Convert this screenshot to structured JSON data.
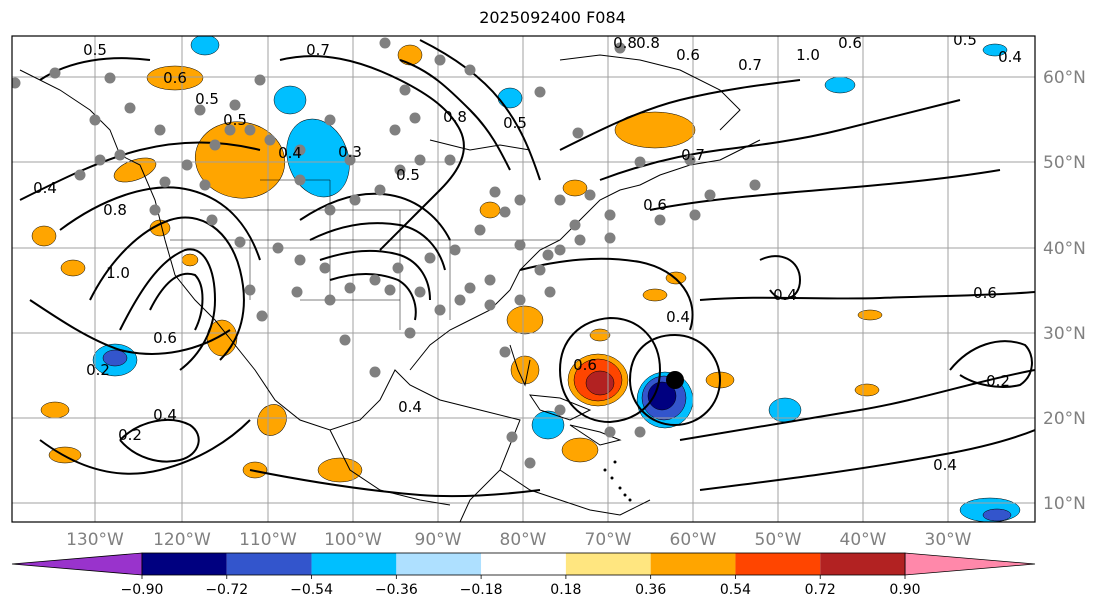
{
  "title": "2025092400 F084",
  "map": {
    "grid": true,
    "lon_labels": [
      "130°W",
      "120°W",
      "110°W",
      "100°W",
      "90°W",
      "80°W",
      "70°W",
      "60°W",
      "50°W",
      "40°W",
      "30°W"
    ],
    "lat_labels": [
      "60°N",
      "50°N",
      "40°N",
      "30°N",
      "20°N",
      "10°N"
    ],
    "contour_labels": [
      "0.5",
      "0.7",
      "0.6",
      "0.5",
      "0.5",
      "0.3",
      "0.4",
      "0.4",
      "0.8",
      "1.0",
      "0.6",
      "0.2",
      "0.4",
      "0.2",
      "0.5",
      "0.8",
      "0.8",
      "0.6",
      "0.7",
      "1.0",
      "0.6",
      "0.5",
      "0.4",
      "0.7",
      "0.6",
      "0.8",
      "0.5",
      "0.6",
      "0.4",
      "0.4",
      "0.2",
      "0.4",
      "0.4",
      "0.6"
    ],
    "shading_colors": {
      "strong_negative": "#000080",
      "negative": "#3355cc",
      "weak_negative": "#00bfff",
      "positive": "#ffa500",
      "strong_positive": "#ff4500",
      "very_strong_positive": "#b22222"
    }
  },
  "colorbar": {
    "colors": [
      "#9933cc",
      "#000080",
      "#3355cc",
      "#00bfff",
      "#aee0ff",
      "#ffffff",
      "#ffe680",
      "#ffa500",
      "#ff4500",
      "#b22222",
      "#ff88aa"
    ],
    "tick_labels": [
      "−0.90",
      "−0.72",
      "−0.54",
      "−0.36",
      "−0.18",
      "0.18",
      "0.36",
      "0.54",
      "0.72",
      "0.90"
    ]
  }
}
